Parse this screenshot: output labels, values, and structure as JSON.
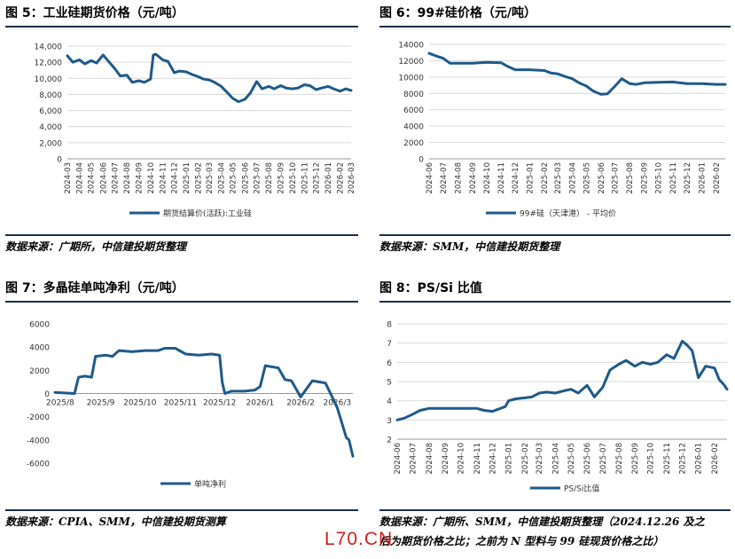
{
  "panels": [
    {
      "title": "图 5：工业硅期货价格（元/吨）",
      "source": "数据来源：广期所，中信建投期货整理"
    },
    {
      "title": "图 6：99#硅价格（元/吨）",
      "source": "数据来源：SMM，中信建投期货整理"
    },
    {
      "title": "图 7：多晶硅单吨净利（元/吨）",
      "source": "数据来源：CPIA、SMM，中信建投期货测算"
    },
    {
      "title": "图 8：PS/Si 比值",
      "source_line1": "数据来源：广期所、SMM，中信建投期货整理（2024.12.26 及之",
      "source_line2": "后为期货价格之比；之前为 N 型料与 99 硅现货价格之比）"
    }
  ],
  "watermark": "L70.CN",
  "colors": {
    "line": "#1f5a8a",
    "rule": "#1c2f4a",
    "grid": "#d9d9d9"
  },
  "chart_data": [
    {
      "type": "line",
      "title": "",
      "ylim": [
        0,
        14000
      ],
      "yticks": [
        "0",
        "2,000",
        "4,000",
        "6,000",
        "8,000",
        "10,000",
        "12,000",
        "14,000"
      ],
      "xticks": [
        "2024-03",
        "2024-04",
        "2024-05",
        "2024-06",
        "2024-07",
        "2024-08",
        "2024-09",
        "2024-10",
        "2024-11",
        "2024-12",
        "2025-01",
        "2025-02",
        "2025-03",
        "2025-04",
        "2025-05",
        "2025-06",
        "2025-07",
        "2025-08",
        "2025-09",
        "2025-10",
        "2025-11",
        "2025-12",
        "2026-01",
        "2026-02",
        "2026-03"
      ],
      "grid": true,
      "legend_position": "bottom",
      "series": [
        {
          "name": "期货结算价(活跃):工业硅",
          "x": [
            "2024-03",
            "2024-03-15",
            "2024-04",
            "2024-04-15",
            "2024-05",
            "2024-05-15",
            "2024-06",
            "2024-06-15",
            "2024-07",
            "2024-07-15",
            "2024-08",
            "2024-08-15",
            "2024-09",
            "2024-09-15",
            "2024-10",
            "2024-10-08",
            "2024-10-15",
            "2024-11",
            "2024-11-15",
            "2024-12",
            "2024-12-15",
            "2025-01",
            "2025-01-15",
            "2025-02",
            "2025-02-15",
            "2025-03",
            "2025-03-15",
            "2025-04",
            "2025-04-15",
            "2025-05",
            "2025-05-15",
            "2025-06",
            "2025-06-15",
            "2025-07",
            "2025-07-15",
            "2025-08",
            "2025-08-15",
            "2025-09",
            "2025-09-15",
            "2025-10",
            "2025-10-15",
            "2025-11",
            "2025-11-15",
            "2025-12",
            "2025-12-15",
            "2026-01",
            "2026-01-15",
            "2026-02",
            "2026-02-15",
            "2026-03"
          ],
          "values": [
            12800,
            12000,
            12300,
            11800,
            12200,
            11900,
            12900,
            12100,
            11200,
            10300,
            10400,
            9500,
            9700,
            9500,
            9900,
            12900,
            13000,
            12300,
            12100,
            10700,
            10900,
            10800,
            10500,
            10200,
            9900,
            9800,
            9500,
            9000,
            8300,
            7500,
            7100,
            7400,
            8200,
            9600,
            8700,
            9000,
            8700,
            9100,
            8800,
            8700,
            8800,
            9200,
            9100,
            8600,
            8800,
            9000,
            8700,
            8400,
            8700,
            8500
          ]
        }
      ]
    },
    {
      "type": "line",
      "title": "",
      "ylim": [
        0,
        14000
      ],
      "yticks": [
        "0",
        "2000",
        "4000",
        "6000",
        "8000",
        "10000",
        "12000",
        "14000"
      ],
      "xticks": [
        "2024-06",
        "2024-07",
        "2024-08",
        "2024-09",
        "2024-10",
        "2024-11",
        "2024-12",
        "2025-01",
        "2025-02",
        "2025-03",
        "2025-04",
        "2025-05",
        "2025-06",
        "2025-07",
        "2025-08",
        "2025-09",
        "2025-10",
        "2025-11",
        "2025-12",
        "2026-01",
        "2026-02"
      ],
      "grid": true,
      "legend_position": "bottom",
      "series": [
        {
          "name": "99#硅（天津港） - 平均价",
          "x": [
            "2024-06",
            "2024-06-15",
            "2024-07",
            "2024-07-15",
            "2024-08",
            "2024-09",
            "2024-10",
            "2024-11",
            "2024-11-15",
            "2024-12",
            "2025-01",
            "2025-02",
            "2025-02-15",
            "2025-03",
            "2025-03-15",
            "2025-04",
            "2025-04-15",
            "2025-05",
            "2025-05-15",
            "2025-06",
            "2025-06-15",
            "2025-07",
            "2025-07-15",
            "2025-08",
            "2025-08-15",
            "2025-09",
            "2025-10",
            "2025-11",
            "2025-12",
            "2026-01",
            "2026-02",
            "2026-02-20"
          ],
          "values": [
            12900,
            12600,
            12300,
            11700,
            11700,
            11700,
            11800,
            11750,
            11300,
            10900,
            10900,
            10800,
            10500,
            10400,
            10100,
            9800,
            9300,
            8900,
            8300,
            7900,
            7950,
            8900,
            9800,
            9200,
            9100,
            9300,
            9350,
            9400,
            9200,
            9200,
            9100,
            9100
          ]
        }
      ]
    },
    {
      "type": "line",
      "title": "",
      "ylim": [
        -6000,
        6000
      ],
      "yticks": [
        "-6000",
        "-4000",
        "-2000",
        "0",
        "2000",
        "4000",
        "6000"
      ],
      "xticks": [
        "2025/8",
        "2025/9",
        "2025/10",
        "2025/11",
        "2025/12",
        "2026/1",
        "2026/2",
        "2026/3"
      ],
      "grid": false,
      "legend_position": "bottom",
      "series": [
        {
          "name": "单吨净利",
          "x": [
            "2025-07-28",
            "2025-08-12",
            "2025-08-15",
            "2025-08-20",
            "2025-08-25",
            "2025-08-28",
            "2025-09-05",
            "2025-09-10",
            "2025-09-15",
            "2025-09-25",
            "2025-10-05",
            "2025-10-15",
            "2025-10-20",
            "2025-10-28",
            "2025-11-05",
            "2025-11-15",
            "2025-11-25",
            "2025-12-01",
            "2025-12-03",
            "2025-12-05",
            "2025-12-10",
            "2025-12-20",
            "2025-12-28",
            "2026-01-01",
            "2026-01-05",
            "2026-01-15",
            "2026-01-20",
            "2026-01-25",
            "2026-02-01",
            "2026-02-10",
            "2026-02-15",
            "2026-02-20",
            "2026-03-01",
            "2026-03-08",
            "2026-03-10",
            "2026-03-13"
          ],
          "values": [
            100,
            0,
            1400,
            1500,
            1400,
            3200,
            3300,
            3200,
            3700,
            3600,
            3700,
            3700,
            3900,
            3900,
            3400,
            3300,
            3400,
            3300,
            1000,
            0,
            200,
            200,
            300,
            600,
            2400,
            2200,
            1200,
            1100,
            -300,
            1100,
            1000,
            900,
            -1200,
            -3800,
            -4000,
            -5400
          ]
        }
      ]
    },
    {
      "type": "line",
      "title": "",
      "ylim": [
        2,
        8
      ],
      "yticks": [
        "2",
        "3",
        "4",
        "5",
        "6",
        "7",
        "8"
      ],
      "xticks": [
        "2024-06",
        "2024-07",
        "2024-08",
        "2024-09",
        "2024-10",
        "2024-11",
        "2024-12",
        "2025-01",
        "2025-02",
        "2025-03",
        "2025-04",
        "2025-05",
        "2025-06",
        "2025-07",
        "2025-08",
        "2025-09",
        "2025-10",
        "2025-11",
        "2025-12",
        "2026-01",
        "2026-02"
      ],
      "grid": true,
      "legend_position": "bottom",
      "series": [
        {
          "name": "PS/Si比值",
          "x": [
            "2024-06",
            "2024-06-15",
            "2024-07",
            "2024-07-15",
            "2024-08",
            "2024-09",
            "2024-10",
            "2024-11",
            "2024-11-15",
            "2024-12",
            "2024-12-26",
            "2025-01",
            "2025-01-15",
            "2025-02",
            "2025-02-15",
            "2025-03",
            "2025-03-15",
            "2025-04",
            "2025-04-15",
            "2025-05",
            "2025-05-15",
            "2025-06",
            "2025-06-15",
            "2025-07",
            "2025-07-15",
            "2025-08",
            "2025-08-15",
            "2025-09",
            "2025-09-15",
            "2025-10",
            "2025-10-15",
            "2025-11",
            "2025-11-15",
            "2025-12",
            "2025-12-10",
            "2025-12-20",
            "2026-01",
            "2026-01-15",
            "2026-02",
            "2026-02-10",
            "2026-02-20",
            "2026-02-25"
          ],
          "values": [
            3.0,
            3.1,
            3.3,
            3.5,
            3.6,
            3.6,
            3.6,
            3.6,
            3.5,
            3.45,
            3.7,
            4.0,
            4.1,
            4.15,
            4.2,
            4.4,
            4.45,
            4.4,
            4.5,
            4.6,
            4.4,
            4.8,
            4.2,
            4.7,
            5.6,
            5.9,
            6.1,
            5.8,
            6.0,
            5.9,
            6.0,
            6.4,
            6.2,
            7.1,
            6.9,
            6.6,
            5.2,
            5.8,
            5.7,
            5.1,
            4.8,
            4.6
          ]
        }
      ]
    }
  ]
}
